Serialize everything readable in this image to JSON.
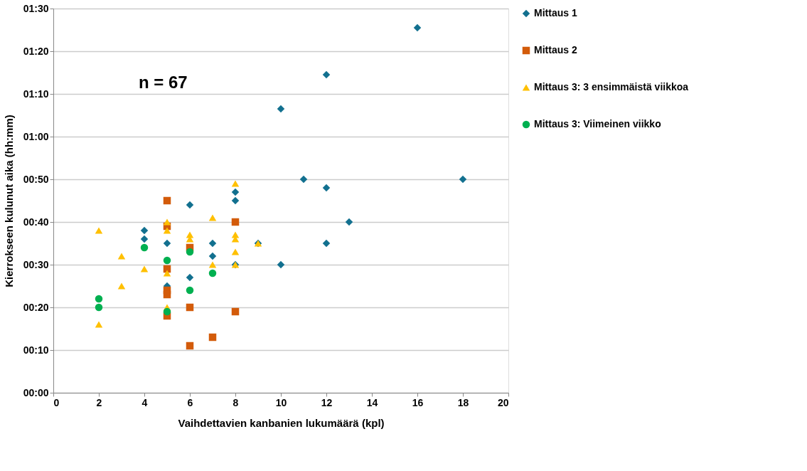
{
  "chart_data": {
    "type": "scatter",
    "xlabel": "Vaihdettavien  kanbanien lukumäärä (kpl)",
    "ylabel": "Kierrokseen kulunut aika (hh:mm)",
    "xlim": [
      0,
      20
    ],
    "xticks": [
      0,
      2,
      4,
      6,
      8,
      10,
      12,
      14,
      16,
      18,
      20
    ],
    "ylim": [
      0,
      90
    ],
    "yticks": [
      {
        "value": 0,
        "label": "00:00"
      },
      {
        "value": 10,
        "label": "00:10"
      },
      {
        "value": 20,
        "label": "00:20"
      },
      {
        "value": 30,
        "label": "00:30"
      },
      {
        "value": 40,
        "label": "00:40"
      },
      {
        "value": 50,
        "label": "00:50"
      },
      {
        "value": 60,
        "label": "01:00"
      },
      {
        "value": 70,
        "label": "01:10"
      },
      {
        "value": 80,
        "label": "01:20"
      },
      {
        "value": 90,
        "label": "01:30"
      }
    ],
    "grid": "y",
    "legend": "right",
    "annotations": [
      "n = 67"
    ],
    "series": [
      {
        "name": "Mittaus 1",
        "color": "#12708f",
        "marker": "diamond",
        "x": [
          16,
          12,
          10,
          11,
          18,
          12,
          13,
          12,
          10,
          9,
          8,
          8,
          8,
          7,
          7,
          6,
          6,
          5,
          5,
          4,
          4
        ],
        "values": [
          85.5,
          74.5,
          66.5,
          50,
          50,
          48,
          40,
          35,
          30,
          35,
          47,
          45,
          30,
          35,
          32,
          44,
          27,
          35,
          25,
          38,
          36
        ]
      },
      {
        "name": "Mittaus 2",
        "color": "#d35b0a",
        "marker": "square",
        "x": [
          5,
          5,
          5,
          5,
          5,
          5,
          6,
          6,
          6,
          7,
          8,
          8
        ],
        "values": [
          45,
          39,
          29,
          24,
          23,
          18,
          34,
          20,
          11,
          13,
          40,
          19
        ]
      },
      {
        "name": "Mittaus 3: 3 ensimmäistä viikkoa",
        "color": "#ffc000",
        "marker": "triangle",
        "x": [
          2,
          2,
          3,
          3,
          4,
          5,
          5,
          5,
          5,
          6,
          6,
          7,
          7,
          8,
          8,
          8,
          8,
          8,
          9
        ],
        "values": [
          38,
          16,
          32,
          25,
          29,
          40,
          38,
          28,
          20,
          37,
          36,
          41,
          30,
          49,
          37,
          36,
          33,
          30,
          35
        ]
      },
      {
        "name": "Mittaus 3: Viimeinen viikko",
        "color": "#00b050",
        "marker": "circle",
        "x": [
          2,
          2,
          4,
          5,
          5,
          6,
          6,
          7
        ],
        "values": [
          22,
          20,
          34,
          31,
          19,
          33,
          24,
          28
        ]
      }
    ]
  }
}
